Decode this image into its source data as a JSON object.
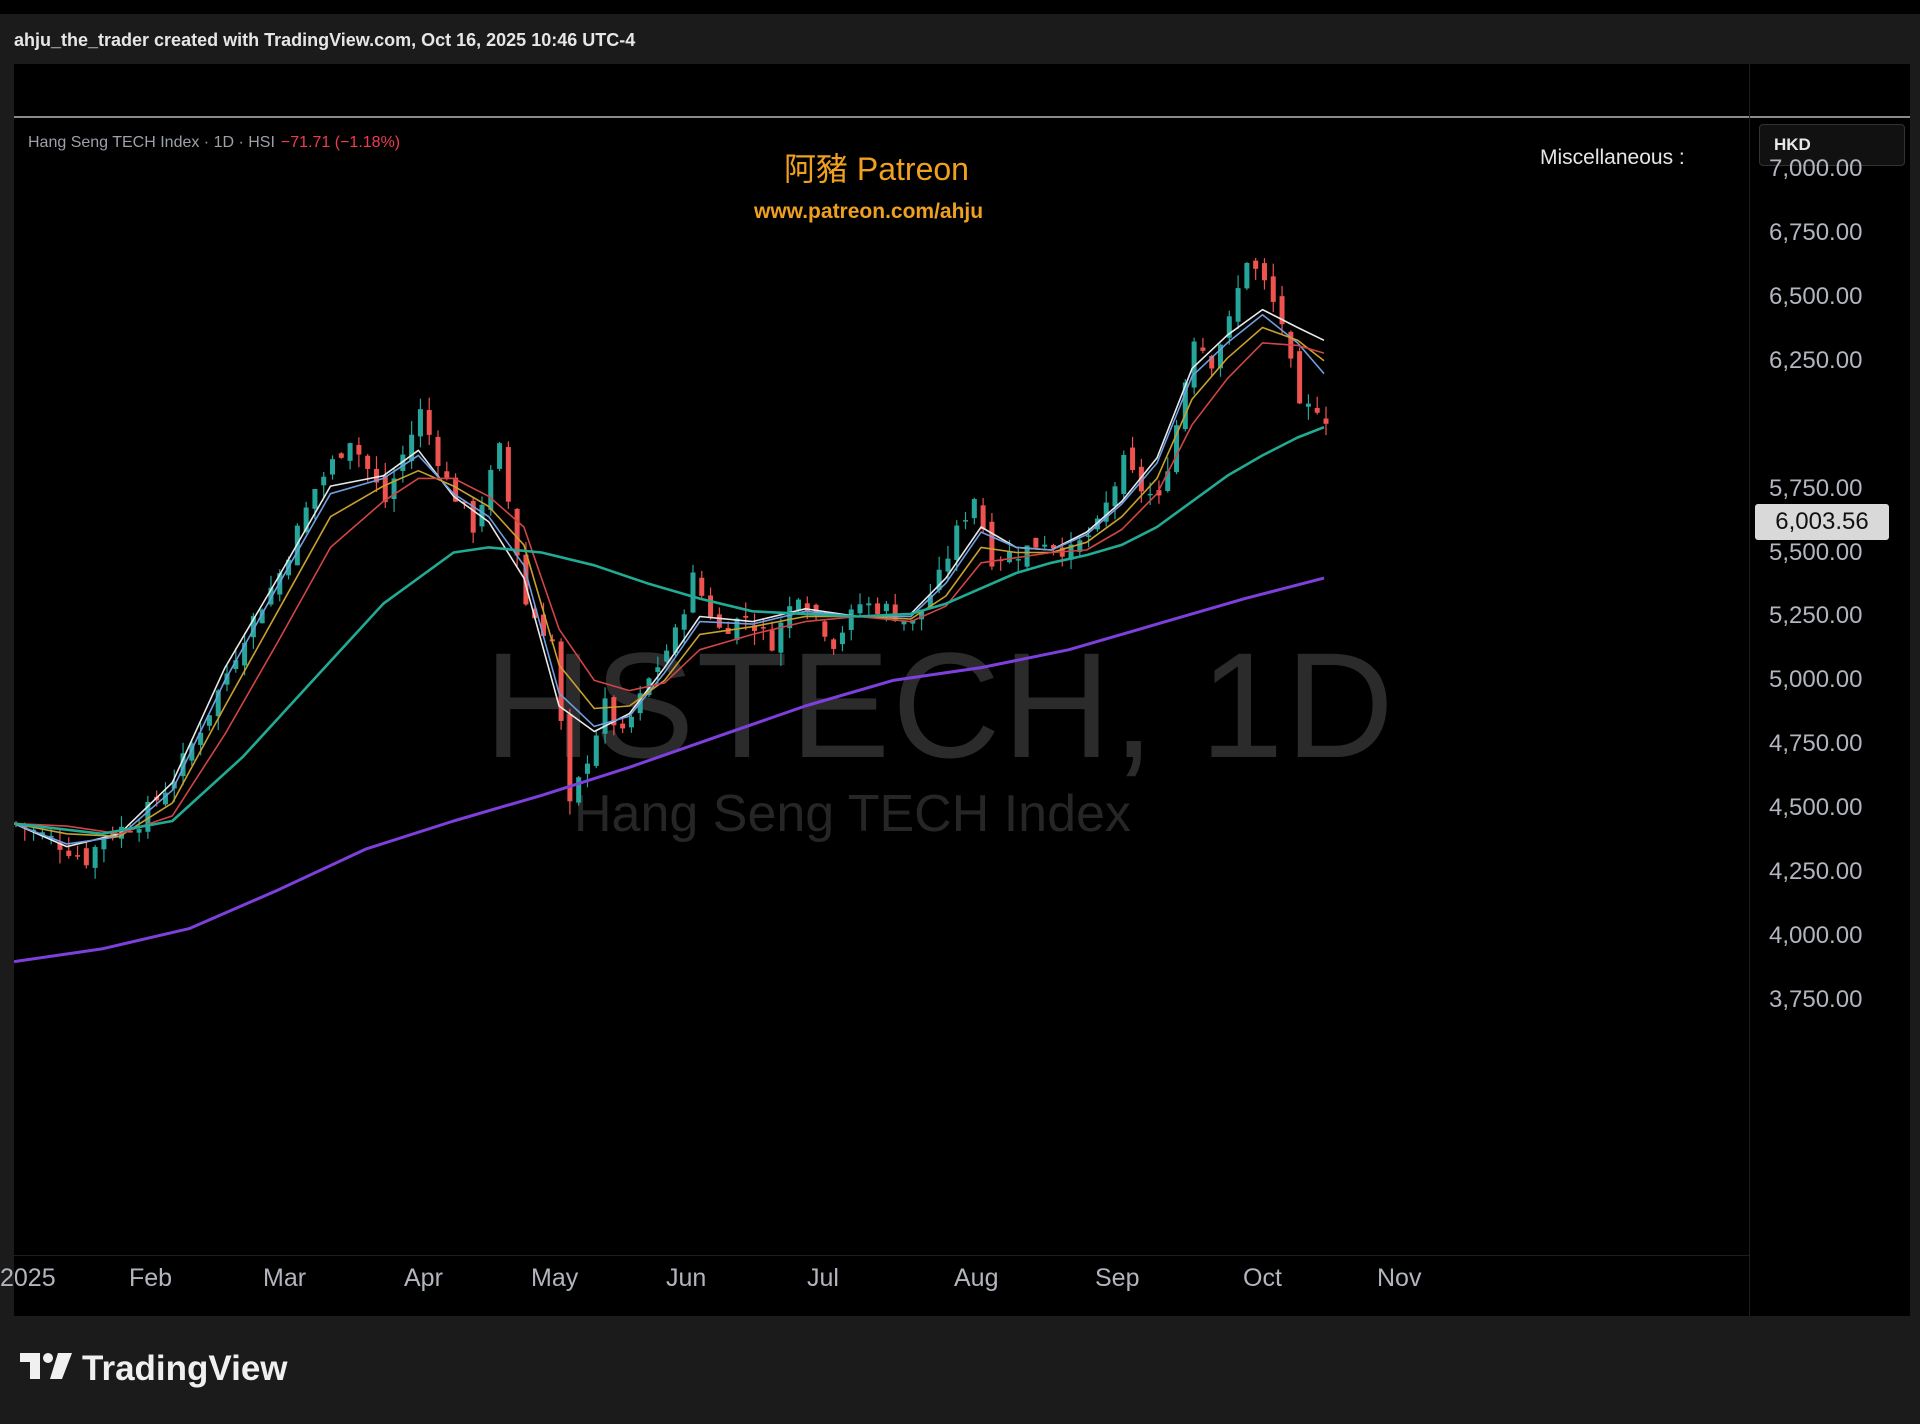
{
  "header": {
    "credit": "ahju_the_trader created with TradingView.com, Oct 16, 2025 10:46 UTC-4"
  },
  "legend": {
    "symbol_desc": "Hang Seng TECH Index · 1D · HSI",
    "change": "−71.71 (−1.18%)"
  },
  "overlay": {
    "title": "阿豬 Patreon",
    "url": "www.patreon.com/ahju",
    "misc": "Miscellaneous :",
    "watermark_symbol": "HSTECH, 1D",
    "watermark_desc": "Hang Seng TECH Index"
  },
  "currency": "HKD",
  "last_price": "6,003.56",
  "colors": {
    "up": "#26a69a",
    "down": "#ef5350",
    "ma_fast_white": "#e8e8e8",
    "ma_blue": "#6f9fe0",
    "ma_gold": "#c8a030",
    "ma_red": "#d04545",
    "ma_teal": "#22ab94",
    "ma_purple": "#7e3fdc"
  },
  "logo": {
    "text": "TradingView"
  },
  "chart_data": {
    "type": "candlestick",
    "symbol": "HSTECH",
    "timeframe": "1D",
    "currency": "HKD",
    "y_ticks": [
      "7,000.00",
      "6,750.00",
      "6,500.00",
      "6,250.00",
      "5,750.00",
      "5,500.00",
      "5,250.00",
      "5,000.00",
      "4,750.00",
      "4,500.00",
      "4,250.00",
      "4,000.00",
      "3,750.00"
    ],
    "x_ticks": [
      "2025",
      "Feb",
      "Mar",
      "Apr",
      "May",
      "Jun",
      "Jul",
      "Aug",
      "Sep",
      "Oct",
      "Nov"
    ],
    "ylim": [
      3700,
      7150
    ],
    "last": 6003.56,
    "close_path": [
      [
        0,
        4440
      ],
      [
        4,
        4380
      ],
      [
        8,
        4300
      ],
      [
        10,
        4390
      ],
      [
        14,
        4450
      ],
      [
        18,
        4620
      ],
      [
        22,
        4880
      ],
      [
        26,
        5180
      ],
      [
        30,
        5420
      ],
      [
        34,
        5750
      ],
      [
        38,
        5950
      ],
      [
        42,
        5700
      ],
      [
        44,
        5880
      ],
      [
        46,
        6050
      ],
      [
        49,
        5780
      ],
      [
        52,
        5600
      ],
      [
        55,
        5900
      ],
      [
        58,
        5300
      ],
      [
        61,
        5150
      ],
      [
        63,
        4500
      ],
      [
        65,
        4700
      ],
      [
        67,
        4900
      ],
      [
        69,
        4780
      ],
      [
        72,
        5000
      ],
      [
        75,
        5180
      ],
      [
        77,
        5400
      ],
      [
        80,
        5200
      ],
      [
        83,
        5250
      ],
      [
        86,
        5150
      ],
      [
        89,
        5350
      ],
      [
        91,
        5250
      ],
      [
        93,
        5150
      ],
      [
        96,
        5300
      ],
      [
        99,
        5280
      ],
      [
        102,
        5220
      ],
      [
        105,
        5400
      ],
      [
        107,
        5580
      ],
      [
        109,
        5720
      ],
      [
        111,
        5480
      ],
      [
        114,
        5500
      ],
      [
        117,
        5550
      ],
      [
        120,
        5500
      ],
      [
        123,
        5600
      ],
      [
        126,
        5850
      ],
      [
        128,
        5750
      ],
      [
        130,
        5700
      ],
      [
        132,
        6000
      ],
      [
        134,
        6350
      ],
      [
        136,
        6250
      ],
      [
        138,
        6400
      ],
      [
        140,
        6650
      ],
      [
        142,
        6550
      ],
      [
        144,
        6400
      ],
      [
        146,
        6050
      ],
      [
        148,
        6075
      ],
      [
        149,
        6003.56
      ]
    ],
    "moving_averages": [
      {
        "color_key": "ma_fast_white",
        "values": [
          [
            0,
            4440
          ],
          [
            6,
            4350
          ],
          [
            12,
            4400
          ],
          [
            18,
            4600
          ],
          [
            24,
            5050
          ],
          [
            30,
            5400
          ],
          [
            36,
            5760
          ],
          [
            42,
            5800
          ],
          [
            46,
            5900
          ],
          [
            50,
            5720
          ],
          [
            54,
            5620
          ],
          [
            58,
            5400
          ],
          [
            62,
            4900
          ],
          [
            66,
            4800
          ],
          [
            70,
            4870
          ],
          [
            74,
            5050
          ],
          [
            78,
            5250
          ],
          [
            84,
            5230
          ],
          [
            90,
            5280
          ],
          [
            96,
            5250
          ],
          [
            102,
            5260
          ],
          [
            106,
            5400
          ],
          [
            110,
            5600
          ],
          [
            114,
            5520
          ],
          [
            118,
            5510
          ],
          [
            122,
            5580
          ],
          [
            126,
            5700
          ],
          [
            130,
            5870
          ],
          [
            134,
            6220
          ],
          [
            138,
            6350
          ],
          [
            142,
            6450
          ],
          [
            146,
            6380
          ],
          [
            149,
            6330
          ]
        ]
      },
      {
        "color_key": "ma_blue",
        "values": [
          [
            0,
            4440
          ],
          [
            6,
            4360
          ],
          [
            12,
            4390
          ],
          [
            18,
            4570
          ],
          [
            24,
            5000
          ],
          [
            30,
            5370
          ],
          [
            36,
            5730
          ],
          [
            42,
            5790
          ],
          [
            46,
            5880
          ],
          [
            50,
            5730
          ],
          [
            54,
            5640
          ],
          [
            58,
            5450
          ],
          [
            62,
            4950
          ],
          [
            66,
            4820
          ],
          [
            70,
            4860
          ],
          [
            74,
            5030
          ],
          [
            78,
            5230
          ],
          [
            84,
            5220
          ],
          [
            90,
            5270
          ],
          [
            96,
            5250
          ],
          [
            102,
            5250
          ],
          [
            106,
            5380
          ],
          [
            110,
            5580
          ],
          [
            114,
            5520
          ],
          [
            118,
            5510
          ],
          [
            122,
            5570
          ],
          [
            126,
            5690
          ],
          [
            130,
            5850
          ],
          [
            134,
            6190
          ],
          [
            138,
            6320
          ],
          [
            142,
            6430
          ],
          [
            146,
            6320
          ],
          [
            149,
            6200
          ]
        ]
      },
      {
        "color_key": "ma_gold",
        "values": [
          [
            0,
            4440
          ],
          [
            6,
            4400
          ],
          [
            12,
            4390
          ],
          [
            18,
            4520
          ],
          [
            24,
            4900
          ],
          [
            30,
            5270
          ],
          [
            36,
            5640
          ],
          [
            42,
            5760
          ],
          [
            46,
            5820
          ],
          [
            50,
            5760
          ],
          [
            54,
            5680
          ],
          [
            58,
            5530
          ],
          [
            62,
            5060
          ],
          [
            66,
            4890
          ],
          [
            70,
            4900
          ],
          [
            74,
            5000
          ],
          [
            78,
            5180
          ],
          [
            84,
            5210
          ],
          [
            90,
            5250
          ],
          [
            96,
            5250
          ],
          [
            102,
            5240
          ],
          [
            106,
            5330
          ],
          [
            110,
            5520
          ],
          [
            114,
            5500
          ],
          [
            118,
            5500
          ],
          [
            122,
            5540
          ],
          [
            126,
            5640
          ],
          [
            130,
            5790
          ],
          [
            134,
            6100
          ],
          [
            138,
            6260
          ],
          [
            142,
            6380
          ],
          [
            146,
            6330
          ],
          [
            149,
            6250
          ]
        ]
      },
      {
        "color_key": "ma_red",
        "values": [
          [
            0,
            4440
          ],
          [
            6,
            4430
          ],
          [
            12,
            4400
          ],
          [
            18,
            4470
          ],
          [
            24,
            4790
          ],
          [
            30,
            5150
          ],
          [
            36,
            5520
          ],
          [
            42,
            5700
          ],
          [
            46,
            5790
          ],
          [
            50,
            5790
          ],
          [
            54,
            5720
          ],
          [
            58,
            5600
          ],
          [
            62,
            5200
          ],
          [
            66,
            5000
          ],
          [
            70,
            4960
          ],
          [
            74,
            4990
          ],
          [
            78,
            5120
          ],
          [
            84,
            5180
          ],
          [
            90,
            5230
          ],
          [
            96,
            5250
          ],
          [
            102,
            5230
          ],
          [
            106,
            5290
          ],
          [
            110,
            5460
          ],
          [
            114,
            5480
          ],
          [
            118,
            5500
          ],
          [
            122,
            5510
          ],
          [
            126,
            5590
          ],
          [
            130,
            5730
          ],
          [
            134,
            6000
          ],
          [
            138,
            6180
          ],
          [
            142,
            6320
          ],
          [
            146,
            6310
          ],
          [
            149,
            6280
          ]
        ]
      },
      {
        "color_key": "ma_teal",
        "values": [
          [
            0,
            4440
          ],
          [
            10,
            4400
          ],
          [
            18,
            4450
          ],
          [
            26,
            4700
          ],
          [
            34,
            5000
          ],
          [
            42,
            5300
          ],
          [
            50,
            5500
          ],
          [
            54,
            5520
          ],
          [
            60,
            5500
          ],
          [
            66,
            5450
          ],
          [
            72,
            5380
          ],
          [
            78,
            5320
          ],
          [
            84,
            5270
          ],
          [
            90,
            5260
          ],
          [
            96,
            5250
          ],
          [
            102,
            5260
          ],
          [
            106,
            5300
          ],
          [
            110,
            5360
          ],
          [
            114,
            5420
          ],
          [
            118,
            5460
          ],
          [
            122,
            5490
          ],
          [
            126,
            5530
          ],
          [
            130,
            5600
          ],
          [
            134,
            5700
          ],
          [
            138,
            5800
          ],
          [
            142,
            5880
          ],
          [
            146,
            5950
          ],
          [
            149,
            5990
          ]
        ]
      },
      {
        "color_key": "ma_purple",
        "values": [
          [
            0,
            3900
          ],
          [
            10,
            3950
          ],
          [
            20,
            4030
          ],
          [
            30,
            4180
          ],
          [
            40,
            4340
          ],
          [
            50,
            4450
          ],
          [
            60,
            4550
          ],
          [
            70,
            4660
          ],
          [
            80,
            4780
          ],
          [
            90,
            4900
          ],
          [
            100,
            5000
          ],
          [
            110,
            5050
          ],
          [
            120,
            5120
          ],
          [
            130,
            5220
          ],
          [
            140,
            5320
          ],
          [
            149,
            5400
          ]
        ]
      }
    ]
  }
}
